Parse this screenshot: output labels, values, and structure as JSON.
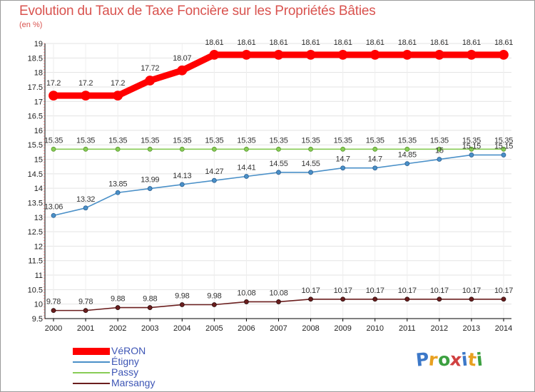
{
  "title": "Evolution du Taux de Taxe Foncière sur les Propriétés Bâties",
  "unit": "(en %)",
  "logo": {
    "text": "Proxiti",
    "colors": [
      "#3c78c8",
      "#e8a020",
      "#3ca040",
      "#d04040",
      "#3c78c8",
      "#e8a020",
      "#3ca040"
    ]
  },
  "chart_data": {
    "type": "line",
    "title": "Evolution du Taux de Taxe Foncière sur les Propriétés Bâties",
    "ylabel": "(en %)",
    "xlabel": "",
    "ylim": [
      9.5,
      19
    ],
    "yticks": [
      "9.5",
      "10",
      "10.5",
      "11",
      "11.5",
      "12",
      "12.5",
      "13",
      "13.5",
      "14",
      "14.5",
      "15",
      "15.5",
      "16",
      "16.5",
      "17",
      "17.5",
      "18",
      "18.5",
      "19"
    ],
    "grid": "horizontal",
    "categories": [
      "2000",
      "2001",
      "2002",
      "2003",
      "2004",
      "2005",
      "2006",
      "2007",
      "2008",
      "2009",
      "2010",
      "2011",
      "2012",
      "2013",
      "2014"
    ],
    "series": [
      {
        "name": "VéRON",
        "color": "#ff0000",
        "values": [
          17.2,
          17.2,
          17.2,
          17.72,
          18.07,
          18.61,
          18.61,
          18.61,
          18.61,
          18.61,
          18.61,
          18.61,
          18.61,
          18.61,
          18.61
        ],
        "labels": [
          "17.2",
          "17.2",
          "17.2",
          "17.72",
          "18.07",
          "18.61",
          "18.61",
          "18.61",
          "18.61",
          "18.61",
          "18.61",
          "18.61",
          "18.61",
          "18.61",
          "18.61"
        ]
      },
      {
        "name": "Étigny",
        "color": "#4a90c8",
        "values": [
          13.06,
          13.32,
          13.85,
          13.99,
          14.13,
          14.27,
          14.41,
          14.55,
          14.55,
          14.7,
          14.7,
          14.85,
          15,
          15.15,
          15.15
        ],
        "labels": [
          "13.06",
          "13.32",
          "13.85",
          "13.99",
          "14.13",
          "14.27",
          "14.41",
          "14.55",
          "14.55",
          "14.7",
          "14.7",
          "14.85",
          "15",
          "15.15",
          "15.15"
        ]
      },
      {
        "name": "Passy",
        "color": "#88cc55",
        "values": [
          15.35,
          15.35,
          15.35,
          15.35,
          15.35,
          15.35,
          15.35,
          15.35,
          15.35,
          15.35,
          15.35,
          15.35,
          15.35,
          15.35,
          15.35
        ],
        "labels": [
          "15.35",
          "15.35",
          "15.35",
          "15.35",
          "15.35",
          "15.35",
          "15.35",
          "15.35",
          "15.35",
          "15.35",
          "15.35",
          "15.35",
          "15.35",
          "15.35",
          "15.35"
        ]
      },
      {
        "name": "Marsangy",
        "color": "#6b1e1e",
        "values": [
          9.78,
          9.78,
          9.88,
          9.88,
          9.98,
          9.98,
          10.08,
          10.08,
          10.17,
          10.17,
          10.17,
          10.17,
          10.17,
          10.17,
          10.17
        ],
        "labels": [
          "9.78",
          "9.78",
          "9.88",
          "9.88",
          "9.98",
          "9.98",
          "10.08",
          "10.08",
          "10.17",
          "10.17",
          "10.17",
          "10.17",
          "10.17",
          "10.17",
          "10.17"
        ]
      }
    ]
  }
}
